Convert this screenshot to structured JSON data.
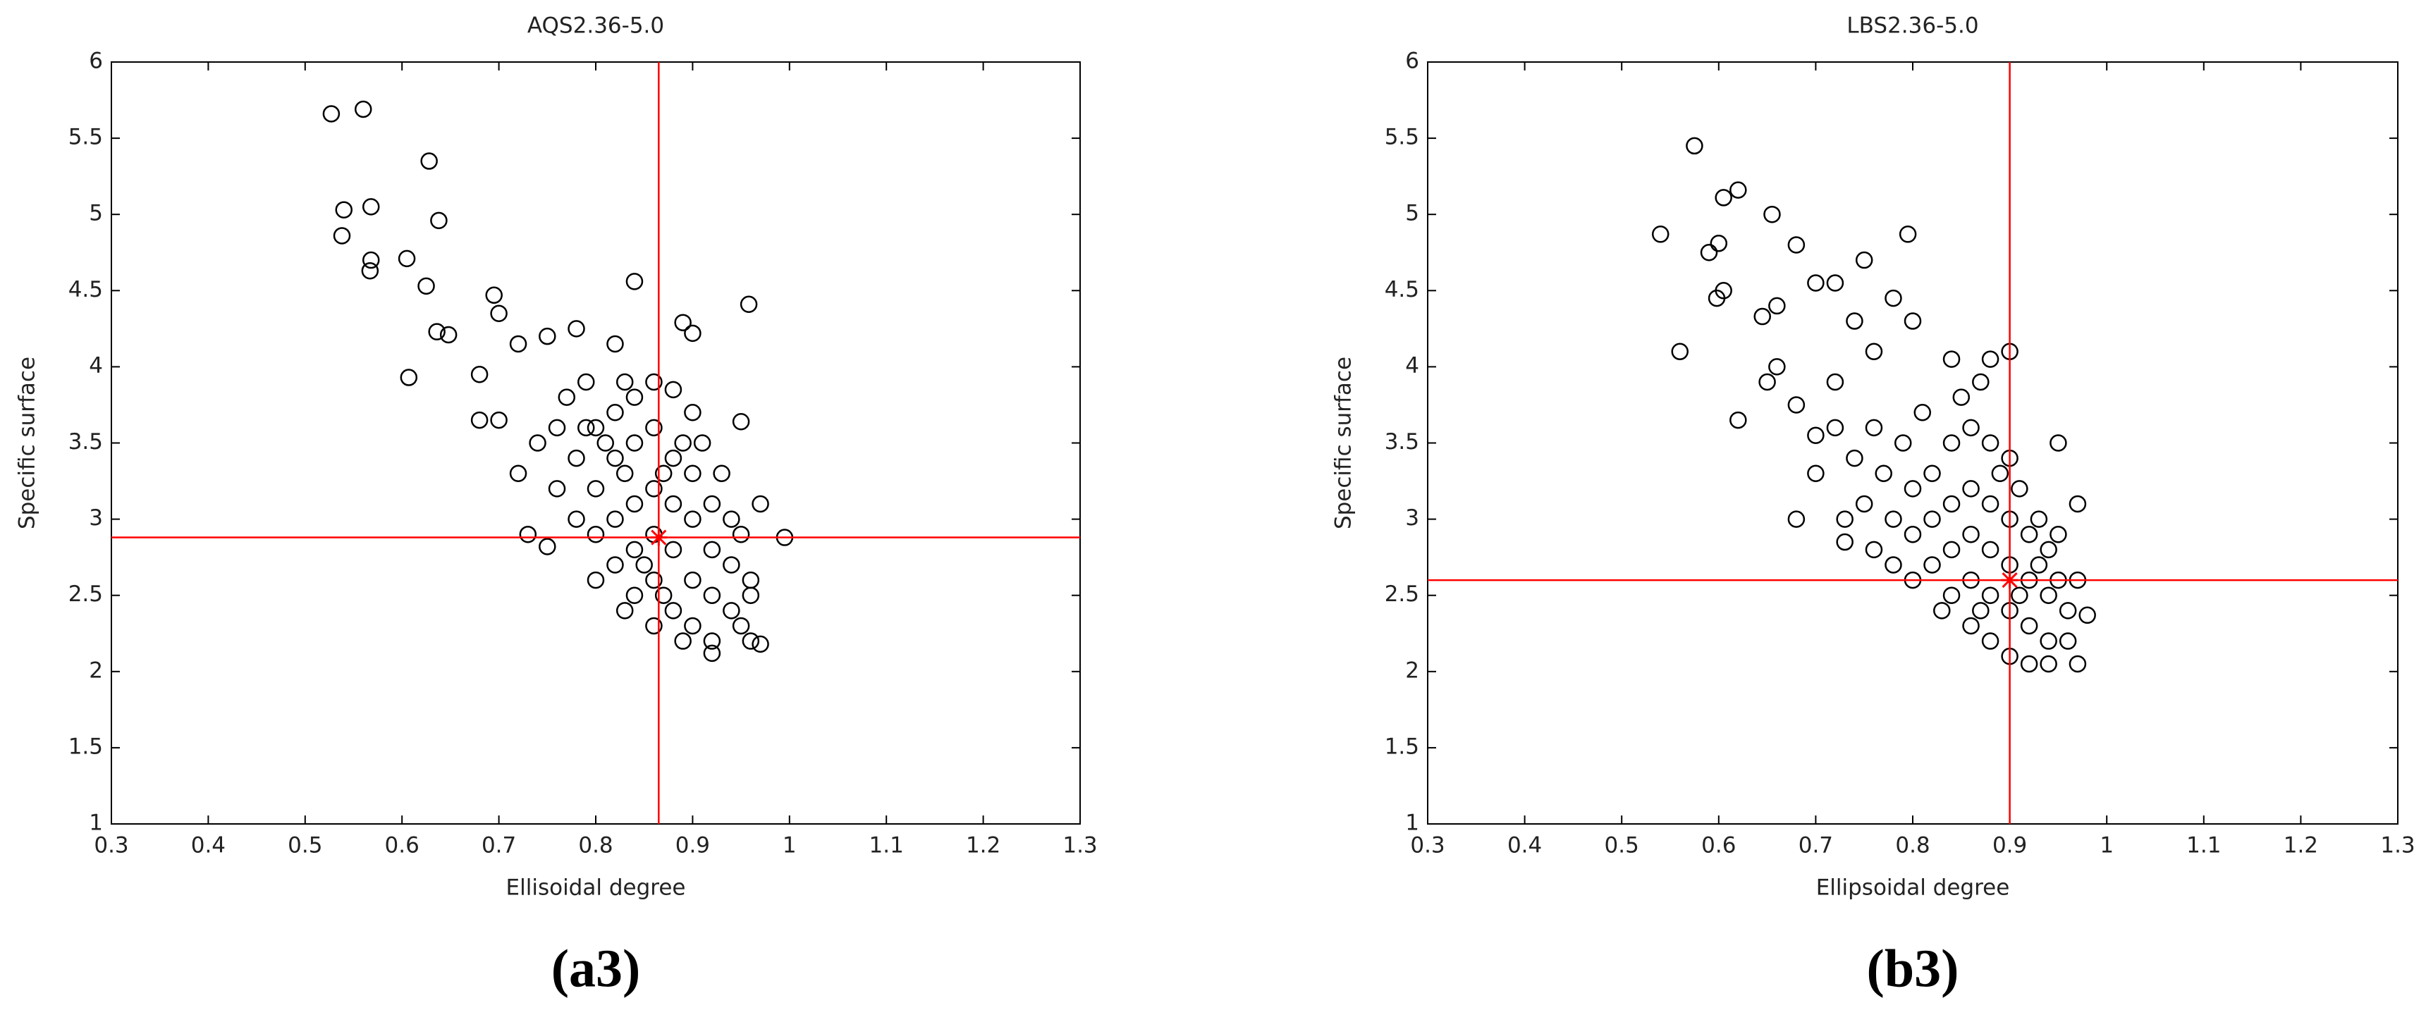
{
  "chart_data": [
    {
      "type": "scatter",
      "title": "AQS2.36-5.0",
      "xlabel": "Ellisoidal degree",
      "ylabel": "Specific surface",
      "panel_label": "(a3)",
      "marker_color": "#000000",
      "x": [
        0.527,
        0.56,
        0.628,
        0.54,
        0.568,
        0.538,
        0.638,
        0.568,
        0.567,
        0.605,
        0.625,
        0.636,
        0.648,
        0.607,
        0.695,
        0.7,
        0.84,
        0.958,
        0.89,
        0.9,
        0.68,
        0.72,
        0.75,
        0.78,
        0.82,
        0.68,
        0.7,
        0.73,
        0.75,
        0.995,
        0.97,
        0.96,
        0.95,
        0.97,
        0.92,
        0.78,
        0.8,
        0.82,
        0.84,
        0.86,
        0.88,
        0.9,
        0.76,
        0.78,
        0.8,
        0.82,
        0.84,
        0.86,
        0.88,
        0.9,
        0.92,
        0.94,
        0.8,
        0.82,
        0.84,
        0.86,
        0.88,
        0.9,
        0.92,
        0.94,
        0.96,
        0.82,
        0.84,
        0.86,
        0.88,
        0.9,
        0.92,
        0.94,
        0.96,
        0.84,
        0.86,
        0.88,
        0.9,
        0.92,
        0.86,
        0.87,
        0.85,
        0.83,
        0.81,
        0.79,
        0.87,
        0.89,
        0.91,
        0.93,
        0.95,
        0.95,
        0.77,
        0.79,
        0.83,
        0.74,
        0.72,
        0.76,
        0.8,
        0.83,
        0.89
      ],
      "y": [
        5.66,
        5.69,
        5.35,
        5.03,
        5.05,
        4.86,
        4.96,
        4.7,
        4.63,
        4.71,
        4.53,
        4.23,
        4.21,
        3.93,
        4.47,
        4.35,
        4.56,
        4.41,
        4.29,
        4.22,
        3.95,
        4.15,
        4.2,
        4.25,
        4.15,
        3.65,
        3.65,
        2.9,
        2.82,
        2.88,
        2.18,
        2.2,
        3.64,
        3.1,
        2.12,
        3.4,
        3.6,
        3.7,
        3.8,
        3.9,
        3.85,
        3.7,
        3.2,
        3.0,
        3.2,
        3.4,
        3.5,
        3.6,
        3.4,
        3.3,
        3.1,
        3.0,
        2.9,
        3.0,
        3.1,
        3.2,
        3.1,
        3.0,
        2.8,
        2.7,
        2.6,
        2.7,
        2.8,
        2.9,
        2.8,
        2.6,
        2.5,
        2.4,
        2.5,
        2.5,
        2.6,
        2.4,
        2.3,
        2.2,
        2.3,
        2.5,
        2.7,
        3.3,
        3.5,
        3.6,
        3.3,
        3.5,
        3.5,
        3.3,
        2.9,
        2.3,
        3.8,
        3.9,
        3.9,
        3.5,
        3.3,
        3.6,
        2.6,
        2.4,
        2.2
      ],
      "crosshair": {
        "x": 0.865,
        "y": 2.88,
        "color": "#ff0000"
      },
      "xlim": [
        0.3,
        1.3
      ],
      "ylim": [
        1,
        6
      ],
      "xticks": [
        0.3,
        0.4,
        0.5,
        0.6,
        0.7,
        0.8,
        0.9,
        1,
        1.1,
        1.2,
        1.3
      ],
      "yticks": [
        1,
        1.5,
        2,
        2.5,
        3,
        3.5,
        4,
        4.5,
        5,
        5.5,
        6
      ]
    },
    {
      "type": "scatter",
      "title": "LBS2.36-5.0",
      "xlabel": "Ellipsoidal degree",
      "ylabel": "Specific surface",
      "panel_label": "(b3)",
      "marker_color": "#000000",
      "x": [
        0.575,
        0.605,
        0.62,
        0.54,
        0.6,
        0.59,
        0.655,
        0.598,
        0.605,
        0.56,
        0.68,
        0.75,
        0.795,
        0.9,
        0.645,
        0.66,
        0.7,
        0.72,
        0.74,
        0.62,
        0.65,
        0.68,
        0.68,
        0.7,
        0.73,
        0.95,
        0.97,
        0.98,
        0.88,
        0.84,
        0.78,
        0.8,
        0.66,
        0.72,
        0.76,
        0.8,
        0.82,
        0.84,
        0.86,
        0.88,
        0.9,
        0.78,
        0.8,
        0.82,
        0.84,
        0.86,
        0.88,
        0.9,
        0.92,
        0.94,
        0.82,
        0.84,
        0.86,
        0.88,
        0.9,
        0.92,
        0.94,
        0.96,
        0.84,
        0.86,
        0.88,
        0.9,
        0.92,
        0.94,
        0.96,
        0.86,
        0.88,
        0.9,
        0.92,
        0.94,
        0.97,
        0.87,
        0.91,
        0.93,
        0.95,
        0.97,
        0.83,
        0.8,
        0.78,
        0.76,
        0.75,
        0.77,
        0.79,
        0.81,
        0.85,
        0.87,
        0.89,
        0.91,
        0.93,
        0.95,
        0.74,
        0.72,
        0.7,
        0.73,
        0.76
      ],
      "y": [
        5.45,
        5.11,
        5.16,
        4.87,
        4.81,
        4.75,
        5.0,
        4.45,
        4.5,
        4.1,
        4.8,
        4.7,
        4.87,
        4.1,
        4.33,
        4.4,
        4.55,
        4.55,
        4.3,
        3.65,
        3.9,
        3.75,
        3.0,
        3.55,
        2.85,
        3.5,
        3.1,
        2.37,
        4.05,
        4.05,
        4.45,
        4.3,
        4.0,
        3.9,
        4.1,
        3.2,
        3.3,
        3.5,
        3.6,
        3.5,
        3.4,
        3.0,
        2.9,
        3.0,
        3.1,
        3.2,
        3.1,
        3.0,
        2.9,
        2.8,
        2.7,
        2.8,
        2.9,
        2.8,
        2.7,
        2.6,
        2.5,
        2.4,
        2.5,
        2.6,
        2.5,
        2.4,
        2.3,
        2.2,
        2.2,
        2.3,
        2.2,
        2.1,
        2.05,
        2.05,
        2.05,
        2.4,
        2.5,
        2.7,
        2.6,
        2.6,
        2.4,
        2.6,
        2.7,
        2.8,
        3.1,
        3.3,
        3.5,
        3.7,
        3.8,
        3.9,
        3.3,
        3.2,
        3.0,
        2.9,
        3.4,
        3.6,
        3.3,
        3.0,
        3.6
      ],
      "crosshair": {
        "x": 0.9,
        "y": 2.6,
        "color": "#ff0000"
      },
      "xlim": [
        0.3,
        1.3
      ],
      "ylim": [
        1,
        6
      ],
      "xticks": [
        0.3,
        0.4,
        0.5,
        0.6,
        0.7,
        0.8,
        0.9,
        1,
        1.1,
        1.2,
        1.3
      ],
      "yticks": [
        1,
        1.5,
        2,
        2.5,
        3,
        3.5,
        4,
        4.5,
        5,
        5.5,
        6
      ]
    }
  ]
}
